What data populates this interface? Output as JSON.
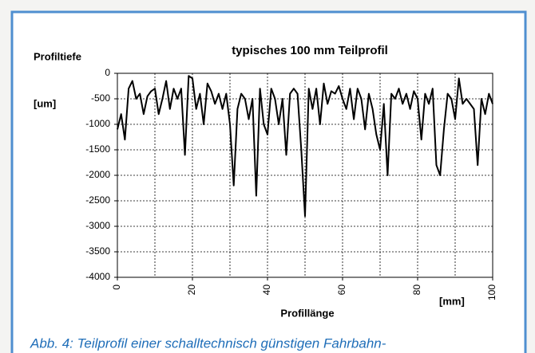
{
  "caption": "Abb. 4: Teilprofil einer schalltechnisch günstigen Fahrbahn-",
  "chart_data": {
    "type": "line",
    "title": "typisches 100 mm Teilprofil",
    "y_label": "Profiltiefe",
    "y_unit": "[um]",
    "x_label": "Profillänge",
    "x_unit": "[mm]",
    "color": "#000000",
    "grid": true,
    "x": [
      0,
      1,
      2,
      3,
      4,
      5,
      6,
      7,
      8,
      9,
      10,
      11,
      12,
      13,
      14,
      15,
      16,
      17,
      18,
      19,
      20,
      21,
      22,
      23,
      24,
      25,
      26,
      27,
      28,
      29,
      30,
      31,
      32,
      33,
      34,
      35,
      36,
      37,
      38,
      39,
      40,
      41,
      42,
      43,
      44,
      45,
      46,
      47,
      48,
      49,
      50,
      51,
      52,
      53,
      54,
      55,
      56,
      57,
      58,
      59,
      60,
      61,
      62,
      63,
      64,
      65,
      66,
      67,
      68,
      69,
      70,
      71,
      72,
      73,
      74,
      75,
      76,
      77,
      78,
      79,
      80,
      81,
      82,
      83,
      84,
      85,
      86,
      87,
      88,
      89,
      90,
      91,
      92,
      93,
      94,
      95,
      96,
      97,
      98,
      99,
      100
    ],
    "values": [
      -1100,
      -800,
      -1300,
      -300,
      -150,
      -500,
      -400,
      -800,
      -450,
      -350,
      -300,
      -800,
      -500,
      -150,
      -700,
      -300,
      -500,
      -300,
      -1600,
      -50,
      -100,
      -700,
      -400,
      -1000,
      -200,
      -350,
      -600,
      -400,
      -700,
      -400,
      -1000,
      -2200,
      -700,
      -400,
      -500,
      -900,
      -500,
      -2400,
      -300,
      -1000,
      -1200,
      -300,
      -500,
      -1000,
      -500,
      -1600,
      -400,
      -300,
      -400,
      -1500,
      -2800,
      -300,
      -700,
      -300,
      -1000,
      -200,
      -600,
      -350,
      -400,
      -250,
      -500,
      -700,
      -300,
      -900,
      -300,
      -500,
      -1100,
      -400,
      -700,
      -1200,
      -1500,
      -600,
      -2000,
      -400,
      -500,
      -300,
      -600,
      -400,
      -700,
      -350,
      -500,
      -1300,
      -400,
      -600,
      -300,
      -1800,
      -2000,
      -1100,
      -400,
      -500,
      -900,
      -100,
      -600,
      -500,
      -600,
      -700,
      -1800,
      -500,
      -800,
      -400,
      -600
    ],
    "xlim": [
      0,
      100
    ],
    "xticks": [
      0,
      20,
      40,
      60,
      80,
      100
    ],
    "xgrid": [
      0,
      10,
      20,
      30,
      40,
      50,
      60,
      70,
      80,
      90,
      100
    ],
    "ylim": [
      -4000,
      0
    ],
    "yticks": [
      0,
      -500,
      -1000,
      -1500,
      -2000,
      -2500,
      -3000,
      -3500,
      -4000
    ]
  }
}
